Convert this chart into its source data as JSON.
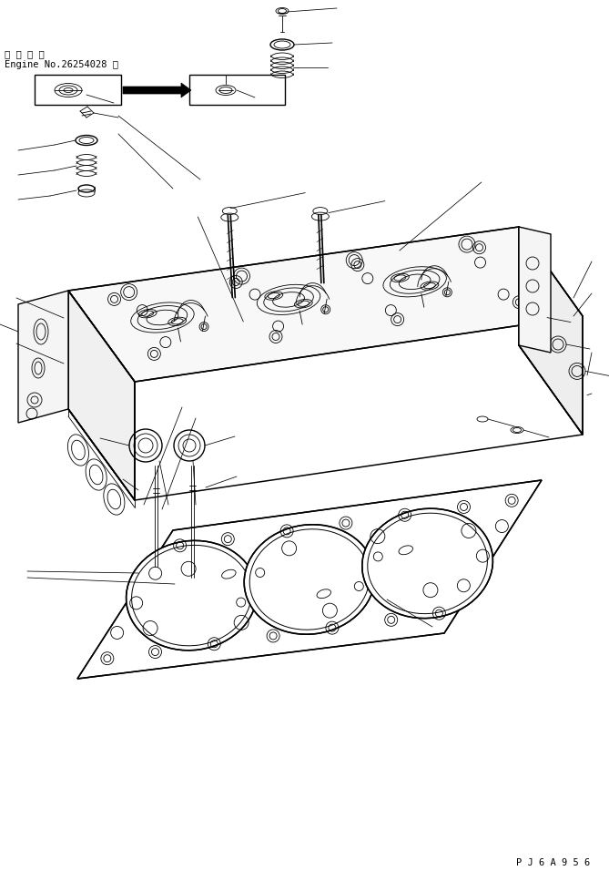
{
  "bg_color": "#ffffff",
  "line_color": "#000000",
  "title_line1": "適 用 号 機",
  "title_line2": "Engine No.26254028 ～",
  "part_code": "P J 6 A 9 5 6",
  "figsize": [
    6.69,
    9.67
  ],
  "dpi": 100,
  "lw_main": 1.0,
  "lw_thin": 0.6,
  "lw_leader": 0.55
}
